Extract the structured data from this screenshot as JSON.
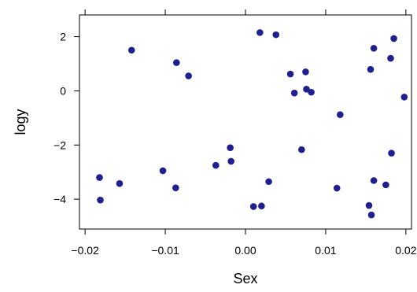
{
  "chart_data": {
    "type": "scatter",
    "xlabel": "Sex",
    "ylabel": "logy",
    "xlim": [
      -0.0207,
      0.0207
    ],
    "ylim": [
      -5.1,
      2.8
    ],
    "x_ticks": [
      -0.02,
      -0.01,
      0.0,
      0.01,
      0.02
    ],
    "x_tick_labels": [
      "−0.02",
      "−0.01",
      "0.00",
      "0.01",
      "0.02"
    ],
    "y_ticks": [
      -4,
      -2,
      0,
      2
    ],
    "y_tick_labels": [
      "−4",
      "−2",
      "0",
      "2"
    ],
    "grid": false,
    "marker_color": "#1f1f8f",
    "points": [
      {
        "x": -0.0142,
        "y": 1.5
      },
      {
        "x": -0.0086,
        "y": 1.04
      },
      {
        "x": -0.0071,
        "y": 0.55
      },
      {
        "x": 0.0018,
        "y": 2.15
      },
      {
        "x": 0.0038,
        "y": 2.07
      },
      {
        "x": 0.0056,
        "y": 0.62
      },
      {
        "x": 0.0061,
        "y": -0.08
      },
      {
        "x": 0.0075,
        "y": 0.7
      },
      {
        "x": 0.0076,
        "y": 0.06
      },
      {
        "x": 0.0082,
        "y": -0.05
      },
      {
        "x": 0.0118,
        "y": -0.88
      },
      {
        "x": 0.0156,
        "y": 0.79
      },
      {
        "x": 0.016,
        "y": 1.57
      },
      {
        "x": 0.0181,
        "y": 1.2
      },
      {
        "x": 0.0185,
        "y": 1.93
      },
      {
        "x": 0.0198,
        "y": -0.23
      },
      {
        "x": -0.0019,
        "y": -2.1
      },
      {
        "x": -0.0018,
        "y": -2.6
      },
      {
        "x": -0.0037,
        "y": -2.75
      },
      {
        "x": 0.007,
        "y": -2.17
      },
      {
        "x": 0.0182,
        "y": -2.3
      },
      {
        "x": -0.0103,
        "y": -2.95
      },
      {
        "x": -0.0182,
        "y": -3.2
      },
      {
        "x": -0.0157,
        "y": -3.42
      },
      {
        "x": -0.0087,
        "y": -3.58
      },
      {
        "x": 0.0029,
        "y": -3.35
      },
      {
        "x": -0.0181,
        "y": -4.03
      },
      {
        "x": 0.001,
        "y": -4.27
      },
      {
        "x": 0.002,
        "y": -4.25
      },
      {
        "x": 0.0114,
        "y": -3.59
      },
      {
        "x": 0.016,
        "y": -3.31
      },
      {
        "x": 0.0175,
        "y": -3.47
      },
      {
        "x": 0.0154,
        "y": -4.23
      },
      {
        "x": 0.0157,
        "y": -4.58
      }
    ]
  }
}
